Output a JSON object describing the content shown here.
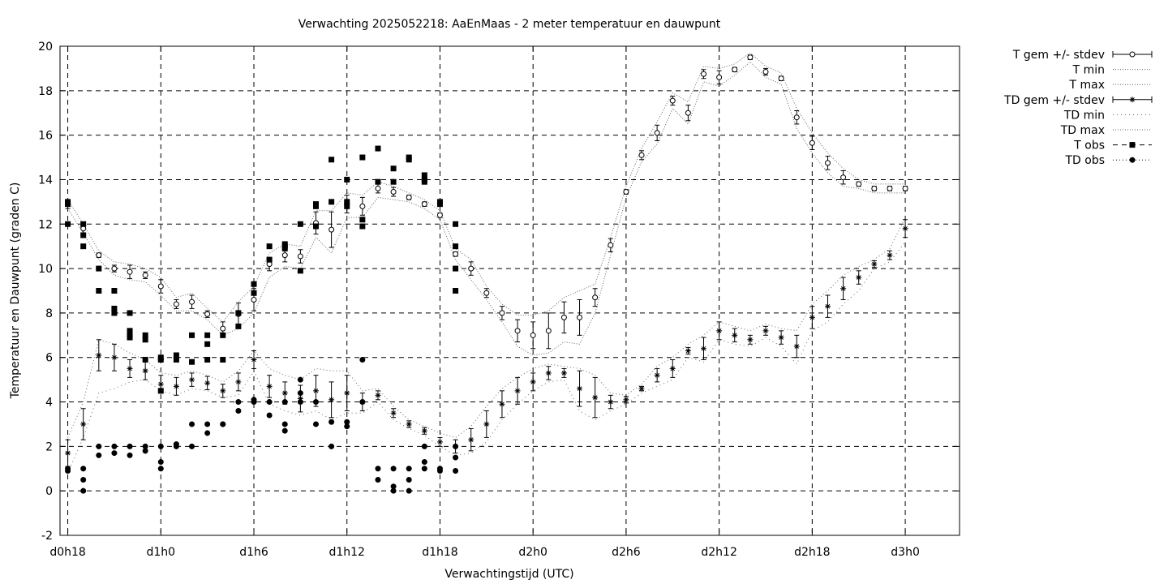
{
  "chart_data": {
    "type": "line",
    "title": "Verwachting 2025052218: AaEnMaas - 2 meter temperatuur en dauwpunt",
    "xlabel": "Verwachtingstijd (UTC)",
    "ylabel": "Temperatuur en Dauwpunt (graden C)",
    "xlim": [
      -0.5,
      57.5
    ],
    "ylim": [
      -2,
      20
    ],
    "grid": true,
    "legend_position": "outside-top-right",
    "x_unit": "forecast hours since d0h18",
    "x_ticks": [
      {
        "x": 0,
        "label": "d0h18"
      },
      {
        "x": 6,
        "label": "d1h0"
      },
      {
        "x": 12,
        "label": "d1h6"
      },
      {
        "x": 18,
        "label": "d1h12"
      },
      {
        "x": 24,
        "label": "d1h18"
      },
      {
        "x": 30,
        "label": "d2h0"
      },
      {
        "x": 36,
        "label": "d2h6"
      },
      {
        "x": 42,
        "label": "d2h12"
      },
      {
        "x": 48,
        "label": "d2h18"
      },
      {
        "x": 54,
        "label": "d3h0"
      }
    ],
    "y_ticks": [
      -2,
      0,
      2,
      4,
      6,
      8,
      10,
      12,
      14,
      16,
      18,
      20
    ],
    "legend": [
      "T gem +/- stdev",
      "T min",
      "T max",
      "TD gem +/- stdev",
      "TD min",
      "TD max",
      "T obs",
      "TD obs"
    ],
    "series": [
      {
        "name": "T gem +/- stdev",
        "x": [
          0,
          1,
          2,
          3,
          4,
          5,
          6,
          7,
          8,
          9,
          10,
          11,
          12,
          13,
          14,
          15,
          16,
          17,
          18,
          19,
          20,
          21,
          22,
          23,
          24,
          25,
          26,
          27,
          28,
          29,
          30,
          31,
          32,
          33,
          34,
          35,
          36,
          37,
          38,
          39,
          40,
          41,
          42,
          43,
          44,
          45,
          46,
          47,
          48,
          49,
          50,
          51,
          52,
          53,
          54
        ],
        "y": [
          12.9,
          11.8,
          10.6,
          10.0,
          9.85,
          9.7,
          9.2,
          8.4,
          8.5,
          7.95,
          7.3,
          7.95,
          8.6,
          10.2,
          10.6,
          10.55,
          12.05,
          11.75,
          12.9,
          12.8,
          13.6,
          13.45,
          13.2,
          12.9,
          12.4,
          10.65,
          10.0,
          8.9,
          8.0,
          7.2,
          7.0,
          7.2,
          7.8,
          7.8,
          8.7,
          11.05,
          13.45,
          15.1,
          16.1,
          17.55,
          17.0,
          18.75,
          18.6,
          18.95,
          19.5,
          18.85,
          18.55,
          16.8,
          15.65,
          14.75,
          14.1,
          13.8,
          13.6,
          13.6,
          13.6
        ],
        "stdev": [
          0.2,
          0.2,
          0.1,
          0.15,
          0.3,
          0.15,
          0.3,
          0.2,
          0.3,
          0.15,
          0.3,
          0.5,
          0.5,
          0.3,
          0.3,
          0.3,
          0.5,
          0.8,
          0.4,
          0.4,
          0.2,
          0.2,
          0.1,
          0.1,
          0.1,
          0.1,
          0.3,
          0.2,
          0.3,
          0.5,
          0.6,
          0.8,
          0.7,
          0.8,
          0.4,
          0.3,
          0.1,
          0.2,
          0.35,
          0.2,
          0.35,
          0.2,
          0.3,
          0.1,
          0.1,
          0.15,
          0.1,
          0.3,
          0.3,
          0.3,
          0.3,
          0.1,
          0.1,
          0.1,
          0.1
        ]
      },
      {
        "name": "T min",
        "x": [
          0,
          1,
          2,
          3,
          4,
          5,
          6,
          7,
          8,
          9,
          10,
          11,
          12,
          13,
          14,
          15,
          16,
          17,
          18,
          19,
          20,
          21,
          22,
          23,
          24,
          25,
          26,
          27,
          28,
          29,
          30,
          31,
          32,
          33,
          34,
          35,
          36,
          37,
          38,
          39,
          40,
          41,
          42,
          43,
          44,
          45,
          46,
          47,
          48,
          49,
          50,
          51,
          52,
          53,
          54
        ],
        "y": [
          12.7,
          11.6,
          10.4,
          9.7,
          9.5,
          9.4,
          8.8,
          8.1,
          8.1,
          7.7,
          7.0,
          7.3,
          8.0,
          9.6,
          10.1,
          10.0,
          11.4,
          10.7,
          12.3,
          12.3,
          13.2,
          13.1,
          13.0,
          12.7,
          12.2,
          10.4,
          9.5,
          8.6,
          7.6,
          6.5,
          6.1,
          6.2,
          6.7,
          6.6,
          8.0,
          10.6,
          13.2,
          14.8,
          15.6,
          17.2,
          16.5,
          18.4,
          18.2,
          18.7,
          19.3,
          18.6,
          18.3,
          16.3,
          15.2,
          14.3,
          13.7,
          13.6,
          13.4,
          13.4,
          13.4
        ]
      },
      {
        "name": "T max",
        "x": [
          0,
          1,
          2,
          3,
          4,
          5,
          6,
          7,
          8,
          9,
          10,
          11,
          12,
          13,
          14,
          15,
          16,
          17,
          18,
          19,
          20,
          21,
          22,
          23,
          24,
          25,
          26,
          27,
          28,
          29,
          30,
          31,
          32,
          33,
          34,
          35,
          36,
          37,
          38,
          39,
          40,
          41,
          42,
          43,
          44,
          45,
          46,
          47,
          48,
          49,
          50,
          51,
          52,
          53,
          54
        ],
        "y": [
          13.1,
          12.0,
          10.8,
          10.3,
          10.2,
          10.0,
          9.6,
          8.7,
          8.9,
          8.2,
          7.6,
          8.5,
          9.2,
          10.7,
          11.1,
          11.0,
          12.6,
          12.6,
          13.4,
          13.3,
          13.9,
          13.7,
          13.4,
          13.1,
          12.6,
          10.9,
          10.4,
          9.2,
          8.4,
          7.9,
          7.9,
          8.1,
          8.7,
          9.0,
          9.3,
          11.4,
          13.7,
          15.4,
          16.6,
          17.9,
          17.5,
          19.1,
          19.0,
          19.2,
          19.7,
          19.1,
          18.8,
          17.2,
          16.1,
          15.2,
          14.5,
          14.0,
          13.8,
          13.8,
          13.8
        ]
      },
      {
        "name": "TD gem +/- stdev",
        "x": [
          0,
          1,
          2,
          3,
          4,
          5,
          6,
          7,
          8,
          9,
          10,
          11,
          12,
          13,
          14,
          15,
          16,
          17,
          18,
          19,
          20,
          21,
          22,
          23,
          24,
          25,
          26,
          27,
          28,
          29,
          30,
          31,
          32,
          33,
          34,
          35,
          36,
          37,
          38,
          39,
          40,
          41,
          42,
          43,
          44,
          45,
          46,
          47,
          48,
          49,
          50,
          51,
          52,
          53,
          54
        ],
        "y": [
          1.7,
          3.0,
          6.1,
          6.0,
          5.5,
          5.4,
          4.8,
          4.7,
          5.0,
          4.85,
          4.5,
          4.9,
          5.9,
          4.7,
          4.4,
          4.15,
          4.5,
          4.1,
          4.4,
          4.0,
          4.3,
          3.5,
          3.0,
          2.7,
          2.2,
          2.0,
          2.3,
          3.0,
          3.9,
          4.5,
          4.9,
          5.3,
          5.3,
          4.6,
          4.2,
          4.0,
          4.1,
          4.6,
          5.2,
          5.5,
          6.3,
          6.4,
          7.2,
          7.0,
          6.8,
          7.2,
          6.9,
          6.5,
          7.8,
          8.3,
          9.1,
          9.6,
          10.2,
          10.6,
          11.8
        ],
        "stdev": [
          0.6,
          0.7,
          0.7,
          0.6,
          0.4,
          0.4,
          0.4,
          0.4,
          0.3,
          0.3,
          0.3,
          0.4,
          0.4,
          0.5,
          0.5,
          0.6,
          0.7,
          0.8,
          0.8,
          0.4,
          0.2,
          0.2,
          0.15,
          0.15,
          0.2,
          0.3,
          0.5,
          0.6,
          0.6,
          0.6,
          0.4,
          0.3,
          0.2,
          0.8,
          0.9,
          0.3,
          0.15,
          0.1,
          0.3,
          0.4,
          0.15,
          0.5,
          0.4,
          0.3,
          0.2,
          0.2,
          0.3,
          0.5,
          0.5,
          0.5,
          0.5,
          0.3,
          0.15,
          0.2,
          0.4
        ]
      },
      {
        "name": "TD min",
        "x": [
          0,
          1,
          2,
          3,
          4,
          5,
          6,
          7,
          8,
          9,
          10,
          11,
          12,
          13,
          14,
          15,
          16,
          17,
          18,
          19,
          20,
          21,
          22,
          23,
          24,
          25,
          26,
          27,
          28,
          29,
          30,
          31,
          32,
          33,
          34,
          35,
          36,
          37,
          38,
          39,
          40,
          41,
          42,
          43,
          44,
          45,
          46,
          47,
          48,
          49,
          50,
          51,
          52,
          53,
          54
        ],
        "y": [
          0.8,
          2.4,
          4.4,
          4.6,
          4.9,
          5.0,
          4.5,
          4.3,
          4.6,
          4.5,
          4.2,
          4.3,
          5.4,
          3.9,
          3.6,
          3.4,
          3.6,
          3.2,
          3.5,
          3.5,
          4.0,
          3.2,
          2.8,
          2.5,
          2.0,
          1.6,
          1.7,
          2.2,
          3.2,
          3.9,
          4.5,
          4.9,
          5.0,
          3.6,
          3.2,
          3.6,
          3.9,
          4.4,
          4.7,
          5.0,
          6.0,
          5.8,
          6.8,
          6.6,
          6.5,
          6.9,
          6.5,
          5.7,
          7.2,
          7.6,
          8.4,
          9.0,
          10.0,
          10.3,
          11.2
        ]
      },
      {
        "name": "TD max",
        "x": [
          0,
          1,
          2,
          3,
          4,
          5,
          6,
          7,
          8,
          9,
          10,
          11,
          12,
          13,
          14,
          15,
          16,
          17,
          18,
          19,
          20,
          21,
          22,
          23,
          24,
          25,
          26,
          27,
          28,
          29,
          30,
          31,
          32,
          33,
          34,
          35,
          36,
          37,
          38,
          39,
          40,
          41,
          42,
          43,
          44,
          45,
          46,
          47,
          48,
          49,
          50,
          51,
          52,
          53,
          54
        ],
        "y": [
          2.4,
          4.0,
          6.8,
          6.6,
          6.2,
          5.9,
          5.3,
          5.2,
          5.4,
          5.2,
          4.9,
          5.4,
          6.3,
          5.5,
          5.2,
          5.0,
          5.5,
          5.4,
          5.4,
          4.5,
          4.6,
          3.8,
          3.2,
          2.9,
          2.6,
          2.4,
          2.9,
          3.8,
          4.6,
          5.1,
          5.5,
          5.7,
          5.6,
          5.5,
          5.2,
          4.4,
          4.3,
          4.8,
          5.6,
          6.0,
          6.6,
          7.0,
          7.6,
          7.4,
          7.2,
          7.5,
          7.3,
          7.2,
          8.4,
          9.0,
          9.7,
          10.1,
          10.4,
          10.9,
          12.3
        ]
      },
      {
        "name": "T obs",
        "x": [
          0,
          0,
          0,
          1,
          1,
          1,
          2,
          2,
          3,
          3,
          3,
          4,
          4,
          4,
          4,
          5,
          5,
          5,
          6,
          6,
          6,
          7,
          7,
          8,
          8,
          9,
          9,
          9,
          10,
          10,
          11,
          11,
          12,
          12,
          13,
          13,
          14,
          14,
          14,
          15,
          15,
          16,
          16,
          16,
          17,
          17,
          18,
          18,
          18,
          19,
          19,
          19,
          20,
          20,
          21,
          21,
          22,
          22,
          23,
          23,
          23,
          24,
          24,
          25,
          25,
          25,
          25
        ],
        "y": [
          12.9,
          13.0,
          12.0,
          12.0,
          11.5,
          11.0,
          10.0,
          9.0,
          9.0,
          8.2,
          8.0,
          8.0,
          7.2,
          7.0,
          6.9,
          7.0,
          6.8,
          5.9,
          6.0,
          5.9,
          4.5,
          6.1,
          5.9,
          7.0,
          5.8,
          7.0,
          6.6,
          5.9,
          7.0,
          5.9,
          8.0,
          7.4,
          9.3,
          8.9,
          11.0,
          10.4,
          11.0,
          11.1,
          10.9,
          12.0,
          9.9,
          12.9,
          12.8,
          11.9,
          14.9,
          13.0,
          14.0,
          13.0,
          12.8,
          15.0,
          12.2,
          11.9,
          15.4,
          13.9,
          14.5,
          13.9,
          15.0,
          14.9,
          14.2,
          14.0,
          13.9,
          13.0,
          12.9,
          12.0,
          11.0,
          10.0,
          9.0
        ]
      },
      {
        "name": "TD obs",
        "x": [
          0,
          0,
          1,
          1,
          1,
          2,
          2,
          3,
          3,
          4,
          4,
          5,
          5,
          6,
          6,
          6,
          7,
          7,
          8,
          8,
          9,
          9,
          10,
          10,
          11,
          11,
          12,
          12,
          13,
          13,
          14,
          14,
          14,
          15,
          15,
          15,
          16,
          16,
          17,
          17,
          18,
          18,
          19,
          19,
          20,
          20,
          21,
          21,
          21,
          22,
          22,
          22,
          23,
          23,
          23,
          24,
          24,
          25,
          25,
          25
        ],
        "y": [
          1.0,
          0.9,
          1.0,
          0.5,
          0.0,
          2.0,
          1.6,
          2.0,
          1.7,
          2.0,
          1.6,
          2.0,
          1.8,
          2.0,
          1.3,
          1.0,
          2.1,
          2.0,
          3.0,
          2.0,
          3.0,
          2.6,
          3.0,
          3.0,
          4.0,
          3.6,
          4.0,
          4.1,
          4.0,
          3.4,
          4.0,
          3.0,
          2.7,
          5.0,
          4.4,
          4.0,
          4.0,
          3.0,
          3.1,
          2.0,
          3.1,
          2.9,
          5.9,
          4.0,
          1.0,
          0.5,
          1.0,
          0.2,
          0.0,
          1.0,
          0.5,
          0.0,
          2.0,
          1.3,
          1.0,
          1.0,
          0.9,
          2.0,
          1.5,
          0.9
        ]
      }
    ]
  }
}
